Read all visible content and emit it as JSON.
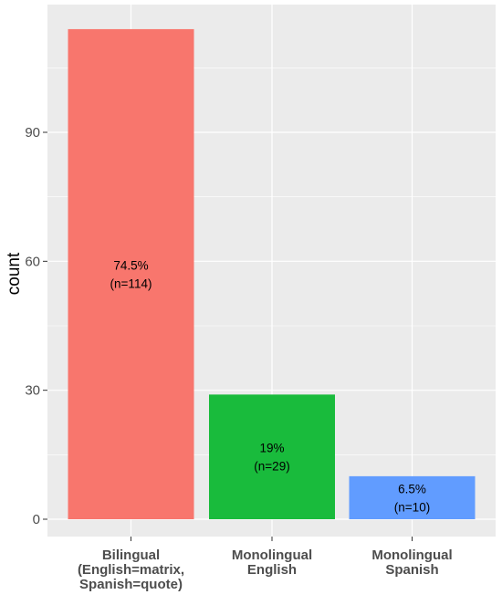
{
  "chart_data": {
    "type": "bar",
    "title": "",
    "xlabel": "",
    "ylabel": "count",
    "ylim": [
      0,
      117
    ],
    "yticks": [
      0,
      30,
      60,
      90
    ],
    "grid": true,
    "legend": "none",
    "categories": [
      [
        "Bilingual",
        "(English=matrix,",
        "Spanish=quote)"
      ],
      [
        "Monolingual",
        "English"
      ],
      [
        "Monolingual",
        "Spanish"
      ]
    ],
    "values": [
      114,
      29,
      10
    ],
    "bar_labels": [
      [
        "74.5%",
        "(n=114)"
      ],
      [
        "19%",
        "(n=29)"
      ],
      [
        "6.5%",
        "(n=10)"
      ]
    ],
    "colors": [
      "#F8766D",
      "#19BB3C",
      "#619CFF"
    ],
    "panel_background": "#EBEBEB",
    "grid_color": "#FFFFFF"
  }
}
